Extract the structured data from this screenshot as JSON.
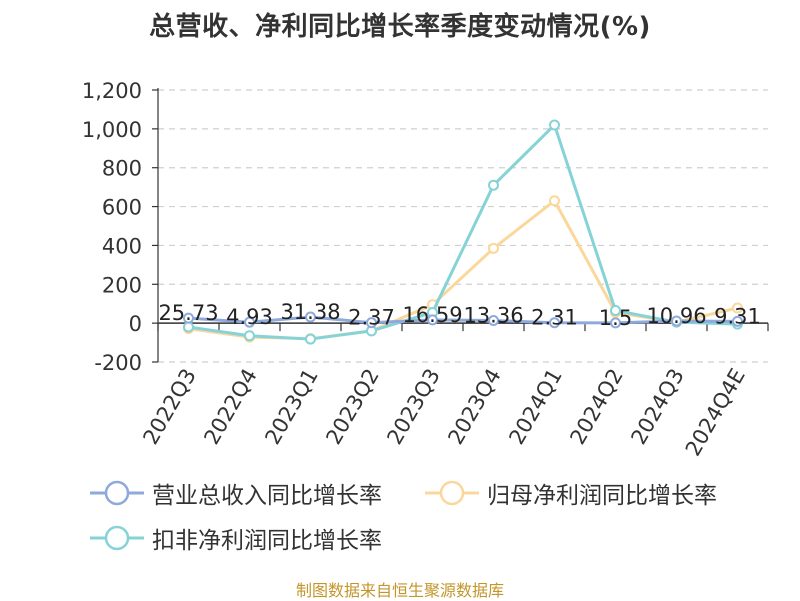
{
  "chart_data": {
    "type": "line",
    "title": "总营收、净利同比增长率季度变动情况(%)",
    "categories": [
      "2022Q3",
      "2022Q4",
      "2023Q1",
      "2023Q2",
      "2023Q3",
      "2023Q4",
      "2024Q1",
      "2024Q2",
      "2024Q3",
      "2024Q4E"
    ],
    "ylim": [
      -200,
      1200
    ],
    "yticks": [
      "1,200",
      "1,000",
      "800",
      "600",
      "400",
      "200",
      "0",
      "-200"
    ],
    "grid": true,
    "legend_position": "bottom",
    "series": [
      {
        "name": "营业总收入同比增长率",
        "color": "#8ea9db",
        "values": [
          25.73,
          4.93,
          31.38,
          2.37,
          16.59,
          13.36,
          2.31,
          1.5,
          10.96,
          9.31
        ],
        "data_labels": [
          "25.73",
          "4.93",
          "31.38",
          "2.37",
          "16.59",
          "13.36",
          "2.31",
          "1.5",
          "10.96",
          "9.31"
        ]
      },
      {
        "name": "归母净利润同比增长率",
        "color": "#fbd79b",
        "values": [
          -28,
          -72,
          -80,
          -40,
          95,
          385,
          630,
          55,
          5,
          78
        ]
      },
      {
        "name": "扣非净利润同比增长率",
        "color": "#86d3d7",
        "values": [
          -20,
          -65,
          -82,
          -40,
          55,
          710,
          1020,
          65,
          5,
          -5
        ]
      }
    ]
  },
  "watermark": "制图数据来自恒生聚源数据库"
}
